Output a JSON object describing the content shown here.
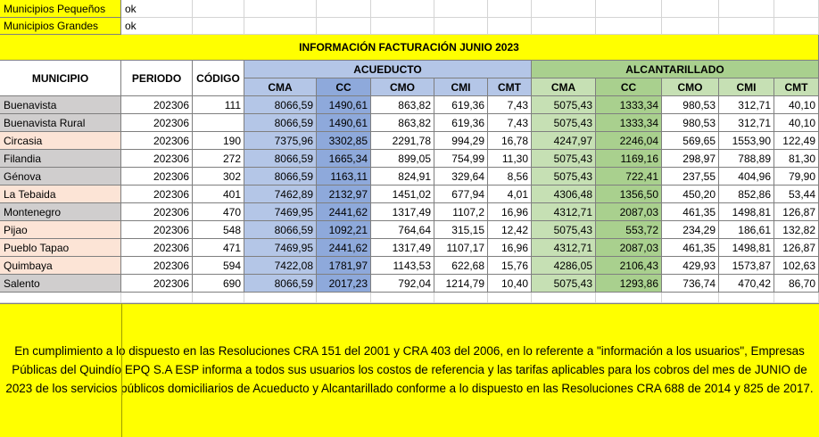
{
  "filters": [
    {
      "label": "Municipios Pequeños",
      "value": "ok"
    },
    {
      "label": "Municipios Grandes",
      "value": "ok"
    }
  ],
  "title": "INFORMACIÓN FACTURACIÓN JUNIO 2023",
  "headers": {
    "municipio": "MUNICIPIO",
    "periodo": "PERIODO",
    "codigo": "CÓDIGO",
    "acueducto": "ACUEDUCTO",
    "alcantarillado": "ALCANTARILLADO",
    "acueducto_cols": [
      "CMA",
      "CC",
      "CMO",
      "CMI",
      "CMT"
    ],
    "alcantarillado_cols": [
      "CMA",
      "CC",
      "CMO",
      "CMI",
      "CMT"
    ]
  },
  "rows": [
    {
      "municipio": "Buenavista",
      "periodo": "202306",
      "codigo": "111",
      "acu": [
        "8066,59",
        "1490,61",
        "863,82",
        "619,36",
        "7,43"
      ],
      "alc": [
        "5075,43",
        "1333,34",
        "980,53",
        "312,71",
        "40,10"
      ]
    },
    {
      "municipio": "Buenavista Rural",
      "periodo": "202306",
      "codigo": "",
      "acu": [
        "8066,59",
        "1490,61",
        "863,82",
        "619,36",
        "7,43"
      ],
      "alc": [
        "5075,43",
        "1333,34",
        "980,53",
        "312,71",
        "40,10"
      ]
    },
    {
      "municipio": "Circasia",
      "periodo": "202306",
      "codigo": "190",
      "acu": [
        "7375,96",
        "3302,85",
        "2291,78",
        "994,29",
        "16,78"
      ],
      "alc": [
        "4247,97",
        "2246,04",
        "569,65",
        "1553,90",
        "122,49"
      ]
    },
    {
      "municipio": "Filandia",
      "periodo": "202306",
      "codigo": "272",
      "acu": [
        "8066,59",
        "1665,34",
        "899,05",
        "754,99",
        "11,30"
      ],
      "alc": [
        "5075,43",
        "1169,16",
        "298,97",
        "788,89",
        "81,30"
      ]
    },
    {
      "municipio": "Génova",
      "periodo": "202306",
      "codigo": "302",
      "acu": [
        "8066,59",
        "1163,11",
        "824,91",
        "329,64",
        "8,56"
      ],
      "alc": [
        "5075,43",
        "722,41",
        "237,55",
        "404,96",
        "79,90"
      ]
    },
    {
      "municipio": "La Tebaida",
      "periodo": "202306",
      "codigo": "401",
      "acu": [
        "7462,89",
        "2132,97",
        "1451,02",
        "677,94",
        "4,01"
      ],
      "alc": [
        "4306,48",
        "1356,50",
        "450,20",
        "852,86",
        "53,44"
      ]
    },
    {
      "municipio": "Montenegro",
      "periodo": "202306",
      "codigo": "470",
      "acu": [
        "7469,95",
        "2441,62",
        "1317,49",
        "1107,2",
        "16,96"
      ],
      "alc": [
        "4312,71",
        "2087,03",
        "461,35",
        "1498,81",
        "126,87"
      ]
    },
    {
      "municipio": "Pijao",
      "periodo": "202306",
      "codigo": "548",
      "acu": [
        "8066,59",
        "1092,21",
        "764,64",
        "315,15",
        "12,42"
      ],
      "alc": [
        "5075,43",
        "553,72",
        "234,29",
        "186,61",
        "132,82"
      ]
    },
    {
      "municipio": "Pueblo Tapao",
      "periodo": "202306",
      "codigo": "471",
      "acu": [
        "7469,95",
        "2441,62",
        "1317,49",
        "1107,17",
        "16,96"
      ],
      "alc": [
        "4312,71",
        "2087,03",
        "461,35",
        "1498,81",
        "126,87"
      ]
    },
    {
      "municipio": "Quimbaya",
      "periodo": "202306",
      "codigo": "594",
      "acu": [
        "7422,08",
        "1781,97",
        "1143,53",
        "622,68",
        "15,76"
      ],
      "alc": [
        "4286,05",
        "2106,43",
        "429,93",
        "1573,87",
        "102,63"
      ]
    },
    {
      "municipio": "Salento",
      "periodo": "202306",
      "codigo": "690",
      "acu": [
        "8066,59",
        "2017,23",
        "792,04",
        "1214,79",
        "10,40"
      ],
      "alc": [
        "5075,43",
        "1293,86",
        "736,74",
        "470,42",
        "86,70"
      ]
    }
  ],
  "notice": "En cumplimiento a lo dispuesto en las Resoluciones CRA 151 del 2001 y CRA 403 del 2006, en lo referente a \"información a los usuarios\", Empresas Públicas del Quindío EPQ S.A ESP informa a todos sus usuarios los costos de referencia y las tarifas aplicables para los cobros del mes de JUNIO de 2023 de los servicios públicos domiciliarios de Acueducto y Alcantarillado conforme a lo dispuesto en las Resoluciones CRA 688 de 2014 y 825 de 2017.",
  "colors": {
    "yellow": "#ffff00",
    "peach": "#fce4d6",
    "gray": "#d0cece",
    "acueducto": "#b4c6e7",
    "acueducto_dark": "#8ea9db",
    "alcantarillado": "#c6e0b4",
    "alcantarillado_dark": "#a9d08e"
  }
}
